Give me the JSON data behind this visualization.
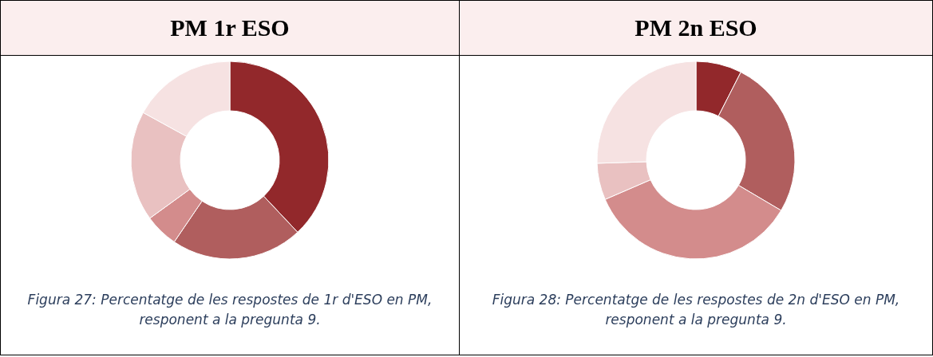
{
  "chart_data": [
    {
      "type": "donut",
      "title": "PM 1r ESO",
      "categories": [
        null,
        null,
        null,
        null,
        null
      ],
      "values": [
        38,
        21.5,
        5.5,
        18,
        17
      ],
      "colors": [
        "#92282b",
        "#b05e5e",
        "#d38c8c",
        "#e9c1c1",
        "#f6e2e2"
      ],
      "annotations": [
        "Figura 27: Percentatge de les respostes de 1r d'ESO en PM, responent a la pregunta 9."
      ]
    },
    {
      "type": "donut",
      "title": "PM 2n ESO",
      "categories": [
        null,
        null,
        null,
        null,
        null
      ],
      "values": [
        7.5,
        26,
        35,
        6,
        25.5
      ],
      "colors": [
        "#92282b",
        "#b05e5e",
        "#d38c8c",
        "#e9c1c1",
        "#f6e2e2"
      ],
      "annotations": [
        "Figura 28: Percentatge de les respostes de 2n d'ESO en PM, responent a la pregunta 9."
      ]
    }
  ]
}
